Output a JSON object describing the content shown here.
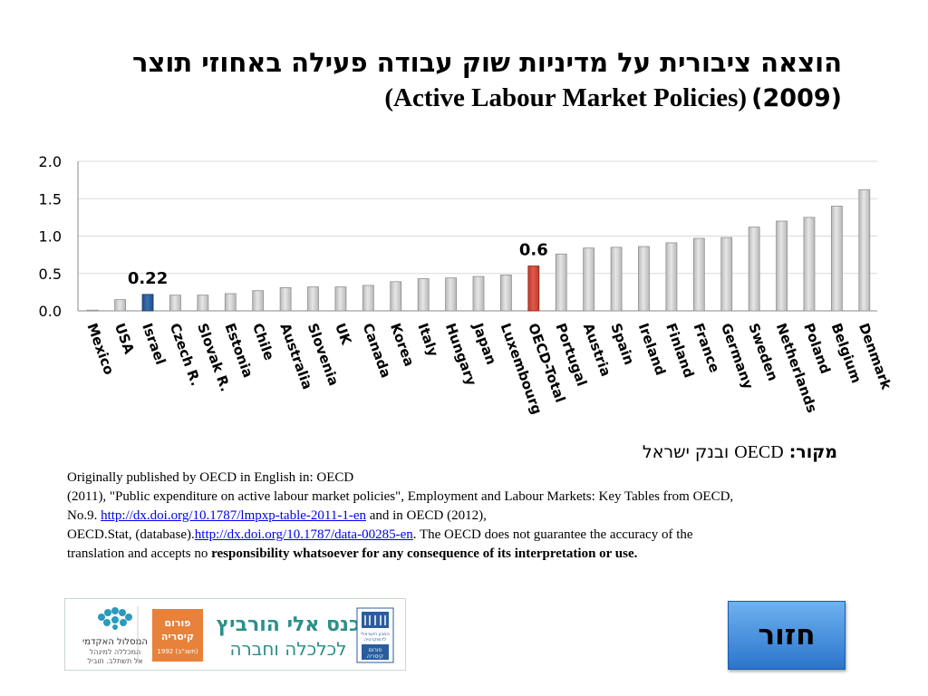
{
  "title": {
    "hebrew": "הוצאה ציבורית על מדיניות שוק עבודה פעילה באחוזי תוצר",
    "english": "(Active Labour Market Policies)",
    "year": "(2009)"
  },
  "chart_data": {
    "type": "bar",
    "categories": [
      "Mexico",
      "USA",
      "Israel",
      "Czech R.",
      "Slovak R.",
      "Estonia",
      "Chile",
      "Australia",
      "Slovenia",
      "UK",
      "Canada",
      "Korea",
      "Italy",
      "Hungary",
      "Japan",
      "Luxembourg",
      "OECD-Total",
      "Portugal",
      "Austria",
      "Spain",
      "Ireland",
      "Finland",
      "France",
      "Germany",
      "Sweden",
      "Netherlands",
      "Poland",
      "Belgium",
      "Denmark"
    ],
    "values": [
      0.01,
      0.15,
      0.22,
      0.21,
      0.21,
      0.23,
      0.27,
      0.31,
      0.32,
      0.32,
      0.34,
      0.39,
      0.43,
      0.44,
      0.46,
      0.48,
      0.6,
      0.76,
      0.84,
      0.85,
      0.86,
      0.91,
      0.97,
      0.98,
      1.12,
      1.2,
      1.25,
      1.4,
      1.62
    ],
    "highlights": {
      "Israel": "#1f4e8c",
      "OECD-Total": "#c0392b"
    },
    "default_color": "#b8b8b8",
    "data_labels": [
      {
        "category": "Israel",
        "text": "0.22"
      },
      {
        "category": "OECD-Total",
        "text": "0.6"
      }
    ],
    "yticks": [
      "0.0",
      "0.5",
      "1.0",
      "1.5",
      "2.0"
    ],
    "ylim": [
      0,
      2.0
    ],
    "grid": true
  },
  "source": {
    "label": "מקור:",
    "oecd": "OECD",
    "rest": "ובנק ישראל"
  },
  "note": {
    "line1": "Originally published by OECD in English in: OECD",
    "line2a": "(2011), \"Public expenditure on active labour market policies\", Employment and Labour Markets: Key Tables from OECD,",
    "line3a": "No.9.",
    "link1": "http://dx.doi.org/10.1787/lmpxp-table-2011-1-en",
    "line3b": "and in OECD (2012),",
    "line4a": "OECD.Stat, (database).",
    "link2": "http://dx.doi.org/10.1787/data-00285-en",
    "line4b": ". The OECD does not guarantee the accuracy of the",
    "line5a": "translation and accepts no",
    "line5b": "responsibility whatsoever for any consequence of its interpretation or use."
  },
  "logos": {
    "academic_line1": "המסלול האקדמי",
    "academic_line2": "המכללה למינהל",
    "academic_line3": "אל תשתלב. תוביל",
    "forum_line1": "פורום",
    "forum_line2": "קיסריה",
    "forum_line3": "1992 (תשנ\"ב)",
    "conference_line1": "כנס אלי הורביץ",
    "conference_line2": "לכלכלה וחברה",
    "idi_line1": "המכון הישראלי",
    "idi_line2": "לדמוקרטיה",
    "idi_line3": "פורום",
    "idi_line4": "קיסריה"
  },
  "back_button": {
    "label": "חזור"
  },
  "colors": {
    "israel": "#1f4e8c",
    "oecd_total": "#c0392b",
    "bars": "#b8b8b8",
    "forum": "#e8813a",
    "conference": "#2c8f8a",
    "button": "#3d87de"
  }
}
